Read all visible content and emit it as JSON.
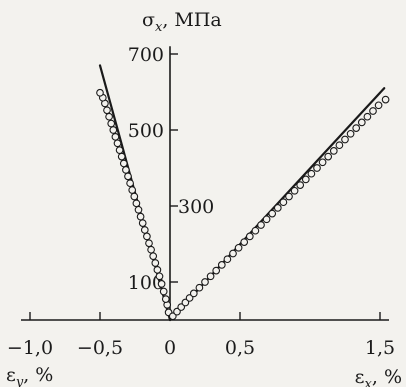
{
  "chart_data": {
    "type": "line",
    "ylabel": {
      "symbol": "σ",
      "sub": "x",
      "unit": ", МПа"
    },
    "xlabel_left": {
      "symbol": "ε",
      "sub": "y",
      "unit": ", %"
    },
    "xlabel_right": {
      "symbol": "ε",
      "sub": "x",
      "unit": ", %"
    },
    "xlim": [
      -1.1,
      1.6
    ],
    "ylim": [
      0,
      760
    ],
    "x_ticks": [
      -1.0,
      -0.5,
      0.5,
      1.5
    ],
    "x_tick_labels": [
      "−1,0",
      "−0,5",
      "0,5",
      "1,5"
    ],
    "x_origin_label": "0",
    "y_ticks": [
      100,
      300,
      500,
      700
    ],
    "y_tick_labels": [
      "100",
      "300",
      "500",
      "700"
    ],
    "grid": false,
    "line_color": "#1a1a1a",
    "series": [
      {
        "kind": "line",
        "x": [
          0,
          -0.5
        ],
        "y": [
          0,
          670
        ]
      },
      {
        "kind": "line",
        "x": [
          0,
          1.53
        ],
        "y": [
          0,
          610
        ]
      },
      {
        "kind": "scatter",
        "x": [
          -0.01,
          -0.02,
          -0.03,
          -0.045,
          -0.06,
          -0.075,
          -0.09,
          -0.105,
          -0.12,
          -0.135,
          -0.15,
          -0.165,
          -0.18,
          -0.195,
          -0.21,
          -0.225,
          -0.24,
          -0.255,
          -0.27,
          -0.285,
          -0.3,
          -0.315,
          -0.33,
          -0.345,
          -0.36,
          -0.375,
          -0.39,
          -0.405,
          -0.42,
          -0.435,
          -0.45,
          -0.465,
          -0.48,
          -0.5
        ],
        "y": [
          20,
          40,
          55,
          75,
          95,
          115,
          132,
          150,
          168,
          185,
          202,
          220,
          237,
          255,
          272,
          290,
          307,
          325,
          342,
          360,
          378,
          395,
          412,
          430,
          447,
          465,
          482,
          500,
          517,
          535,
          552,
          570,
          585,
          598
        ]
      },
      {
        "kind": "scatter",
        "x": [
          0.02,
          0.05,
          0.08,
          0.11,
          0.14,
          0.17,
          0.21,
          0.25,
          0.29,
          0.33,
          0.37,
          0.41,
          0.45,
          0.49,
          0.53,
          0.57,
          0.61,
          0.65,
          0.69,
          0.73,
          0.77,
          0.81,
          0.85,
          0.89,
          0.93,
          0.97,
          1.01,
          1.05,
          1.09,
          1.13,
          1.17,
          1.21,
          1.25,
          1.29,
          1.33,
          1.37,
          1.41,
          1.45,
          1.49,
          1.54
        ],
        "y": [
          10,
          22,
          34,
          46,
          58,
          70,
          85,
          100,
          115,
          130,
          145,
          160,
          175,
          190,
          205,
          220,
          235,
          250,
          265,
          280,
          295,
          310,
          325,
          340,
          355,
          370,
          385,
          400,
          415,
          430,
          445,
          460,
          475,
          490,
          505,
          520,
          535,
          550,
          565,
          580
        ]
      }
    ]
  }
}
